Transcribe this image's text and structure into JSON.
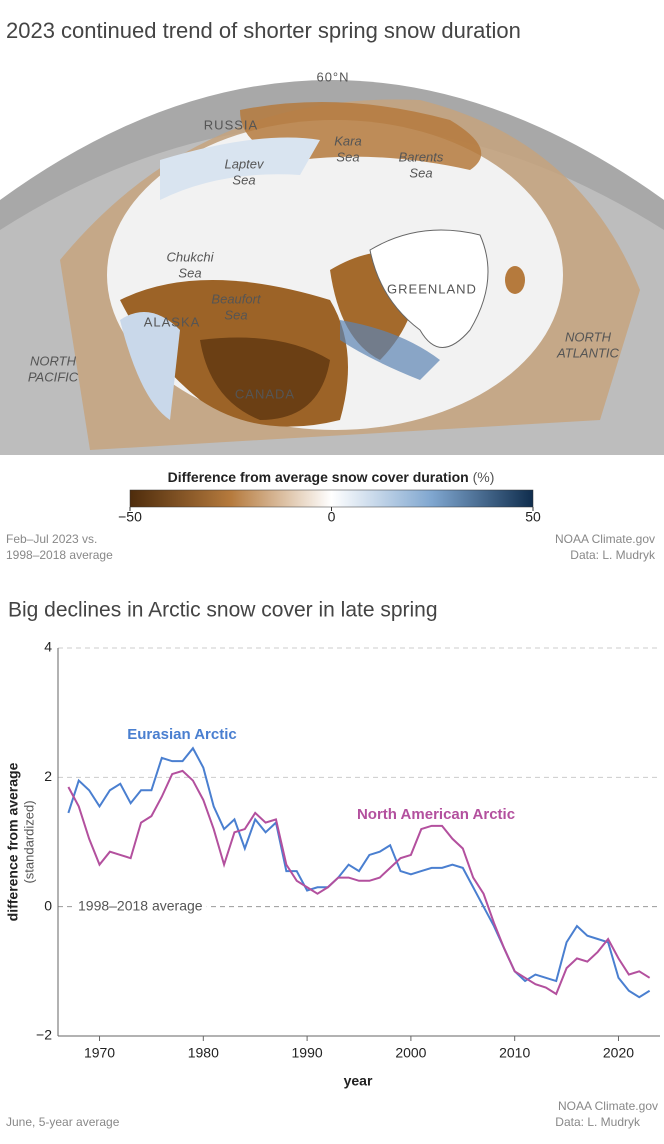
{
  "map": {
    "title": "2023 continued trend of shorter spring snow duration",
    "labels": [
      [
        "60°N"
      ],
      [
        "RUSSIA"
      ],
      [
        "Kara",
        "Sea"
      ],
      [
        "Laptev",
        "Sea"
      ],
      [
        "Barents",
        "Sea"
      ],
      [
        "Chukchi",
        "Sea"
      ],
      [
        "Beaufort",
        "Sea"
      ],
      [
        "GREENLAND"
      ],
      [
        "ALASKA"
      ],
      [
        "NORTH",
        "PACIFIC"
      ],
      [
        "NORTH",
        "ATLANTIC"
      ],
      [
        "CANADA"
      ]
    ],
    "colorbar": {
      "title": "Difference from average snow cover duration",
      "unit": "(%)",
      "ticks": [
        {
          "value": -50,
          "label": "−50"
        },
        0,
        50
      ],
      "lim": [
        -50,
        50
      ]
    },
    "note": [
      "Feb–Jul 2023 vs.",
      "1998–2018 average"
    ],
    "credit": [
      "NOAA Climate.gov",
      "Data: L. Mudryk"
    ]
  },
  "chart_data": {
    "type": "line",
    "title": "Big declines in Arctic snow cover in late spring",
    "ylabel": "difference from average",
    "ylabel_sub": "(standardized)",
    "xlabel": "year",
    "x": [
      1967,
      1968,
      1969,
      1970,
      1971,
      1972,
      1973,
      1974,
      1975,
      1976,
      1977,
      1978,
      1979,
      1980,
      1981,
      1982,
      1983,
      1984,
      1985,
      1986,
      1987,
      1988,
      1989,
      1990,
      1991,
      1992,
      1993,
      1994,
      1995,
      1996,
      1997,
      1998,
      1999,
      2000,
      2001,
      2002,
      2003,
      2004,
      2005,
      2006,
      2007,
      2008,
      2009,
      2010,
      2011,
      2012,
      2013,
      2014,
      2015,
      2016,
      2017,
      2018,
      2019,
      2020,
      2021,
      2022,
      2023
    ],
    "series": [
      {
        "name": "Eurasian Arctic",
        "color": "#4a7fd0",
        "values": [
          1.45,
          1.95,
          1.8,
          1.55,
          1.8,
          1.9,
          1.6,
          1.8,
          1.8,
          2.3,
          2.25,
          2.25,
          2.45,
          2.15,
          1.55,
          1.2,
          1.35,
          0.9,
          1.35,
          1.15,
          1.3,
          0.55,
          0.55,
          0.25,
          0.3,
          0.3,
          0.45,
          0.65,
          0.55,
          0.8,
          0.85,
          0.95,
          0.55,
          0.5,
          0.55,
          0.6,
          0.6,
          0.65,
          0.6,
          0.3,
          0,
          -0.3,
          -0.65,
          -1.0,
          -1.15,
          -1.05,
          -1.1,
          -1.15,
          -0.55,
          -0.3,
          -0.45,
          -0.5,
          -0.55,
          -1.1,
          -1.3,
          -1.4,
          -1.3
        ]
      },
      {
        "name": "North American Arctic",
        "color": "#b3509e",
        "values": [
          1.85,
          1.55,
          1.05,
          0.65,
          0.85,
          0.8,
          0.75,
          1.3,
          1.4,
          1.7,
          2.05,
          2.1,
          1.95,
          1.65,
          1.2,
          0.65,
          1.15,
          1.2,
          1.45,
          1.3,
          1.35,
          0.65,
          0.4,
          0.3,
          0.2,
          0.3,
          0.45,
          0.45,
          0.4,
          0.4,
          0.45,
          0.6,
          0.75,
          0.8,
          1.2,
          1.25,
          1.25,
          1.05,
          0.9,
          0.45,
          0.2,
          -0.25,
          -0.65,
          -1.0,
          -1.1,
          -1.2,
          -1.25,
          -1.35,
          -0.95,
          -0.8,
          -0.85,
          -0.7,
          -0.5,
          -0.8,
          -1.05,
          -1.0,
          -1.1
        ]
      }
    ],
    "xlim": [
      1966,
      2024
    ],
    "xticks": [
      1970,
      1980,
      1990,
      2000,
      2010,
      2020
    ],
    "ylim": [
      -2,
      4
    ],
    "yticks": [
      {
        "value": -2,
        "label": "−2"
      },
      0,
      2,
      4
    ],
    "grid": true,
    "annotation": "1998–2018 average",
    "note": "June, 5-year average",
    "credit": [
      "NOAA Climate.gov",
      "Data: L. Mudryk"
    ]
  }
}
